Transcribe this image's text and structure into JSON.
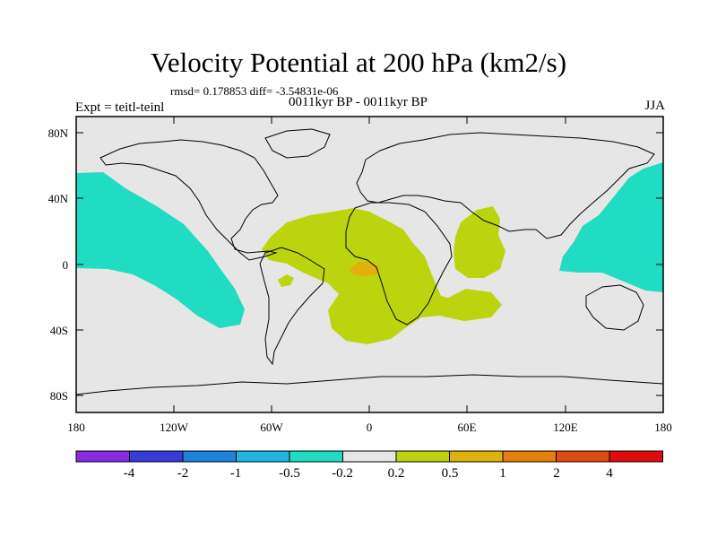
{
  "title": "Velocity Potential at 200 hPa (km2/s)",
  "stats": "rmsd= 0.178853  diff= -3.54831e-06",
  "expt": "Expt = teitl-teinl",
  "period": "0011kyr BP - 0011kyr BP",
  "season": "JJA",
  "lat_labels": [
    "80N",
    "40N",
    "0",
    "40S",
    "80S"
  ],
  "lon_labels": [
    "180",
    "120W",
    "60W",
    "0",
    "60E",
    "120E",
    "180"
  ],
  "colorbar": {
    "colors": [
      "#8a2be2",
      "#3a3ad6",
      "#1e82d8",
      "#20b6e0",
      "#20dcc2",
      "#e6e6e6",
      "#bcd40e",
      "#e0b10c",
      "#e2800c",
      "#e04a12",
      "#e00c0c"
    ],
    "labels": [
      "-4",
      "-2",
      "-1",
      "-0.5",
      "-0.2",
      "0.2",
      "0.5",
      "1",
      "2",
      "4"
    ]
  },
  "colors": {
    "background_field": "#e6e6e6",
    "negative_anomaly": "#20dcc2",
    "positive_anomaly": "#bcd40e",
    "strong_positive": "#e0b10c"
  }
}
